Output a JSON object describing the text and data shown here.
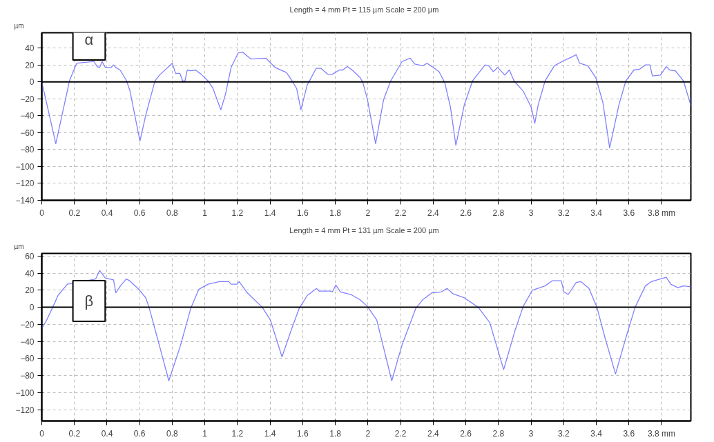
{
  "chart_data": [
    {
      "type": "line",
      "title": "Length = 4 mm  Pt = 115 µm  Scale = 200 µm",
      "ylabel": "µm",
      "annotations": [
        "α"
      ],
      "x": [
        0,
        0.086,
        0.171,
        0.214,
        0.32,
        0.34,
        0.355,
        0.37,
        0.39,
        0.425,
        0.44,
        0.454,
        0.48,
        0.518,
        0.54,
        0.602,
        0.638,
        0.694,
        0.722,
        0.8,
        0.806,
        0.82,
        0.847,
        0.864,
        0.878,
        0.892,
        0.914,
        0.942,
        0.977,
        1.02,
        1.048,
        1.098,
        1.126,
        1.161,
        1.204,
        1.232,
        1.282,
        1.374,
        1.43,
        1.5,
        1.535,
        1.563,
        1.589,
        1.627,
        1.683,
        1.711,
        1.754,
        1.782,
        1.825,
        1.846,
        1.874,
        1.903,
        1.952,
        1.969,
        1.997,
        2.047,
        2.096,
        2.139,
        2.209,
        2.259,
        2.287,
        2.337,
        2.362,
        2.393,
        2.436,
        2.471,
        2.506,
        2.539,
        2.591,
        2.641,
        2.718,
        2.74,
        2.768,
        2.796,
        2.839,
        2.867,
        2.896,
        2.952,
        3.001,
        3.023,
        3.044,
        3.086,
        3.143,
        3.2,
        3.235,
        3.277,
        3.298,
        3.348,
        3.397,
        3.44,
        3.482,
        3.539,
        3.581,
        3.631,
        3.666,
        3.701,
        3.729,
        3.744,
        3.793,
        3.829,
        3.85,
        3.885,
        3.935,
        3.98
      ],
      "series": [
        {
          "color": "#8080ff",
          "values": [
            0,
            -73,
            2,
            22,
            24,
            18,
            17,
            24,
            17,
            17,
            20,
            17,
            14,
            2,
            -10,
            -70,
            -39,
            1,
            8,
            22,
            19,
            10,
            10,
            1,
            1,
            14,
            13,
            14,
            9,
            1,
            -7,
            -33,
            -15,
            17,
            34,
            35,
            27,
            28,
            17,
            11,
            1,
            -8,
            -33,
            -4,
            16,
            16,
            9,
            9,
            14,
            14,
            18,
            14,
            5,
            -1,
            -21,
            -73,
            -21,
            1,
            24,
            28,
            21,
            19,
            22,
            18,
            12,
            -1,
            -30,
            -75,
            -27,
            1,
            20,
            19,
            12,
            17,
            8,
            14,
            1,
            -11,
            -30,
            -49,
            -27,
            1,
            19,
            25,
            28,
            32,
            22,
            19,
            5,
            -24,
            -78,
            -27,
            1,
            14,
            15,
            20,
            20,
            7,
            8,
            18,
            14,
            13,
            1,
            -28
          ]
        }
      ],
      "xlim": [
        0,
        3.98
      ],
      "ylim": [
        -140,
        58
      ],
      "xticks": [
        0,
        0.2,
        0.4,
        0.6,
        0.8,
        1,
        1.2,
        1.4,
        1.6,
        1.8,
        2,
        2.2,
        2.4,
        2.6,
        2.8,
        3,
        3.2,
        3.4,
        3.6,
        {
          "value": 3.8,
          "label": "3.8 mm"
        }
      ],
      "yticks": [
        40,
        20,
        0,
        -20,
        -40,
        -60,
        -80,
        -100,
        -120,
        -140
      ],
      "ref_lines": [
        {
          "axis": "y",
          "value": 0,
          "color": "#000000"
        }
      ],
      "grid": true,
      "line_style": "solid",
      "marker": "none"
    },
    {
      "type": "line",
      "title": "Length = 4 mm  Pt = 131 µm  Scale = 200 µm",
      "ylabel": "µm",
      "annotations": [
        "β"
      ],
      "x": [
        0,
        0.03,
        0.072,
        0.1,
        0.157,
        0.33,
        0.355,
        0.39,
        0.44,
        0.454,
        0.482,
        0.518,
        0.539,
        0.595,
        0.638,
        0.659,
        0.709,
        0.779,
        0.85,
        0.914,
        0.963,
        1.02,
        1.09,
        1.147,
        1.16,
        1.197,
        1.21,
        1.26,
        1.352,
        1.402,
        1.473,
        1.529,
        1.579,
        1.629,
        1.685,
        1.7,
        1.77,
        1.782,
        1.803,
        1.831,
        1.895,
        1.95,
        1.997,
        2.054,
        2.146,
        2.209,
        2.294,
        2.337,
        2.393,
        2.45,
        2.485,
        2.52,
        2.591,
        2.676,
        2.747,
        2.832,
        2.902,
        2.952,
        3.008,
        3.086,
        3.129,
        3.185,
        3.202,
        3.228,
        3.277,
        3.306,
        3.355,
        3.404,
        3.454,
        3.518,
        3.581,
        3.638,
        3.701,
        3.737,
        3.829,
        3.857,
        3.9,
        3.935,
        3.98
      ],
      "series": [
        {
          "color": "#8080ff",
          "values": [
            -25,
            -15,
            2,
            14,
            27,
            33,
            43,
            34,
            32,
            17,
            25,
            33,
            31,
            21,
            11,
            -1,
            -36,
            -86,
            -45,
            -1,
            21,
            27,
            30,
            30,
            27,
            27,
            30,
            17,
            0,
            -15,
            -58,
            -27,
            -1,
            14,
            22,
            19,
            19,
            18,
            26,
            18,
            15,
            9,
            1,
            -15,
            -86,
            -44,
            -1,
            9,
            17,
            18,
            22,
            16,
            11,
            0,
            -18,
            -73,
            -27,
            1,
            20,
            25,
            31,
            31,
            18,
            15,
            29,
            30,
            22,
            0,
            -36,
            -78,
            -36,
            0,
            25,
            30,
            35,
            27,
            23,
            25,
            24
          ]
        }
      ],
      "xlim": [
        0,
        3.98
      ],
      "ylim": [
        -133,
        63
      ],
      "xticks": [
        0,
        0.2,
        0.4,
        0.6,
        0.8,
        1,
        1.2,
        1.4,
        1.6,
        1.8,
        2,
        2.2,
        2.4,
        2.6,
        2.8,
        3,
        3.2,
        3.4,
        3.6,
        {
          "value": 3.8,
          "label": "3.8 mm"
        }
      ],
      "yticks": [
        60,
        40,
        20,
        0,
        -20,
        -40,
        -60,
        -80,
        -100,
        -120
      ],
      "ref_lines": [
        {
          "axis": "y",
          "value": 0,
          "color": "#000000"
        }
      ],
      "grid": true,
      "line_style": "solid",
      "marker": "none"
    }
  ]
}
